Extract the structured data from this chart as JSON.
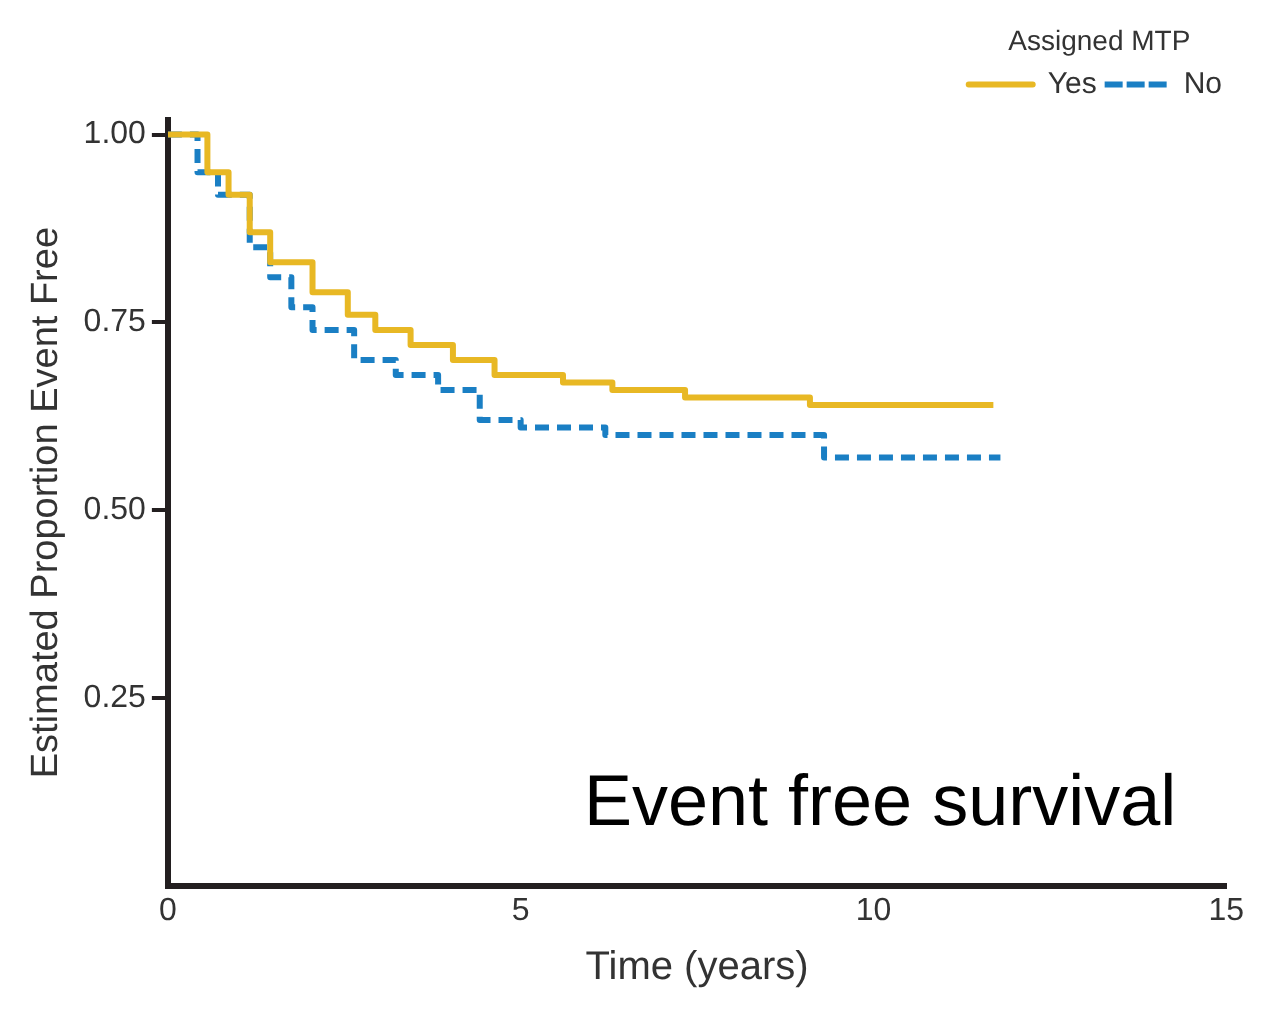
{
  "chart_data": {
    "type": "step",
    "xlabel": "Time (years)",
    "ylabel": "Estimated Proportion Event Free",
    "legend_title": "Assigned MTP",
    "legend": "top right",
    "grid": false,
    "marker": "none",
    "xlim": [
      0,
      15
    ],
    "xticks": [
      0,
      5,
      10,
      15
    ],
    "ylim": [
      0,
      1.02
    ],
    "yticks": [
      {
        "value": 0.25,
        "label": "0.25"
      },
      {
        "value": 0.5,
        "label": "0.50"
      },
      {
        "value": 0.75,
        "label": "0.75"
      },
      {
        "value": 1,
        "label": "1.00"
      }
    ],
    "annotations": [
      "Event free survival"
    ],
    "series": [
      {
        "name": "Yes",
        "color": "#e8b824",
        "line_style": "solid",
        "x": [
          0,
          0.56,
          0.86,
          1.16,
          1.45,
          1.66,
          2.05,
          2.55,
          2.94,
          3.44,
          4.04,
          4.63,
          5.6,
          6.3,
          7.33,
          9.1,
          11.7
        ],
        "values": [
          1,
          0.95,
          0.92,
          0.87,
          0.83,
          0.83,
          0.79,
          0.76,
          0.74,
          0.72,
          0.7,
          0.68,
          0.67,
          0.66,
          0.65,
          0.64,
          0.64
        ]
      },
      {
        "name": "No",
        "color": "#1a7fc4",
        "line_style": "dashed",
        "x": [
          0,
          0.42,
          0.71,
          1.16,
          1.45,
          1.75,
          2.05,
          2.64,
          3.23,
          3.83,
          4.42,
          5.0,
          6.2,
          9.3,
          11.8
        ],
        "values": [
          1,
          0.95,
          0.92,
          0.85,
          0.81,
          0.77,
          0.74,
          0.7,
          0.68,
          0.66,
          0.62,
          0.61,
          0.6,
          0.57,
          0.57
        ]
      }
    ]
  }
}
